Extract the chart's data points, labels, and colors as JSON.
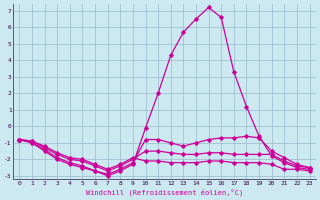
{
  "xlabel": "Windchill (Refroidissement éolien,°C)",
  "bg_color": "#cce8f0",
  "line_color": "#cc0099",
  "grid_color": "#99bbcc",
  "xlim_min": -0.5,
  "xlim_max": 23.5,
  "ylim_min": -3.2,
  "ylim_max": 7.4,
  "xticks": [
    0,
    1,
    2,
    3,
    4,
    5,
    6,
    7,
    8,
    9,
    10,
    11,
    12,
    13,
    14,
    15,
    16,
    17,
    18,
    19,
    20,
    21,
    22,
    23
  ],
  "yticks": [
    -3,
    -2,
    -1,
    0,
    1,
    2,
    3,
    4,
    5,
    6,
    7
  ],
  "series": [
    [
      -0.8,
      -1.0,
      -1.4,
      -1.9,
      -2.2,
      -2.4,
      -2.7,
      -3.0,
      -2.7,
      -2.3,
      -0.1,
      2.0,
      4.3,
      5.7,
      6.5,
      7.2,
      6.6,
      3.3,
      1.2,
      -0.6,
      -1.8,
      -2.2,
      -2.5,
      -2.6
    ],
    [
      -0.8,
      -1.0,
      -1.5,
      -2.0,
      -2.3,
      -2.5,
      -2.7,
      -2.9,
      -2.6,
      -2.2,
      -0.8,
      -0.8,
      -1.0,
      -1.2,
      -1.0,
      -0.8,
      -0.7,
      -0.7,
      -0.6,
      -0.7,
      -1.5,
      -1.9,
      -2.3,
      -2.5
    ],
    [
      -0.8,
      -0.9,
      -1.3,
      -1.7,
      -2.0,
      -2.1,
      -2.4,
      -2.7,
      -2.4,
      -2.0,
      -1.5,
      -1.5,
      -1.6,
      -1.7,
      -1.7,
      -1.6,
      -1.6,
      -1.7,
      -1.7,
      -1.7,
      -1.7,
      -2.1,
      -2.4,
      -2.5
    ],
    [
      -0.8,
      -0.9,
      -1.2,
      -1.6,
      -1.9,
      -2.0,
      -2.3,
      -2.6,
      -2.3,
      -1.9,
      -2.1,
      -2.1,
      -2.2,
      -2.2,
      -2.2,
      -2.1,
      -2.1,
      -2.2,
      -2.2,
      -2.2,
      -2.3,
      -2.6,
      -2.6,
      -2.7
    ]
  ]
}
